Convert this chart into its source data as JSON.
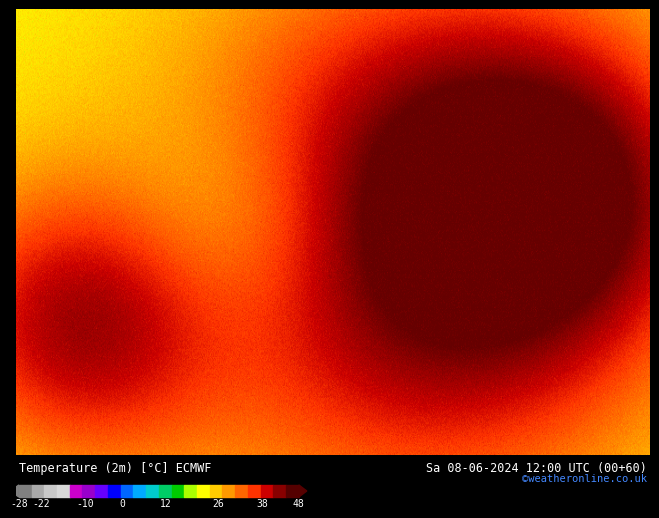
{
  "title_left": "Temperature (2m) [°C] ECMWF",
  "title_right": "Sa 08-06-2024 12:00 UTC (00+60)",
  "credit": "©weatheronline.co.uk",
  "colorbar_values": [
    -28,
    -22,
    -10,
    0,
    12,
    26,
    38,
    48
  ],
  "colorbar_colors": [
    "#a0a0a0",
    "#c0c0c0",
    "#d8d8d8",
    "#cc00cc",
    "#9900cc",
    "#6600cc",
    "#0000ff",
    "#0055ff",
    "#00aaff",
    "#00cccc",
    "#00cc66",
    "#00cc00",
    "#aaff00",
    "#ffff00",
    "#ffcc00",
    "#ff9900",
    "#ff6600",
    "#ff3300",
    "#cc0000",
    "#990000",
    "#660000"
  ],
  "bg_color": "#000000",
  "map_bg": "#ff8800",
  "fig_width": 6.34,
  "fig_height": 4.9
}
